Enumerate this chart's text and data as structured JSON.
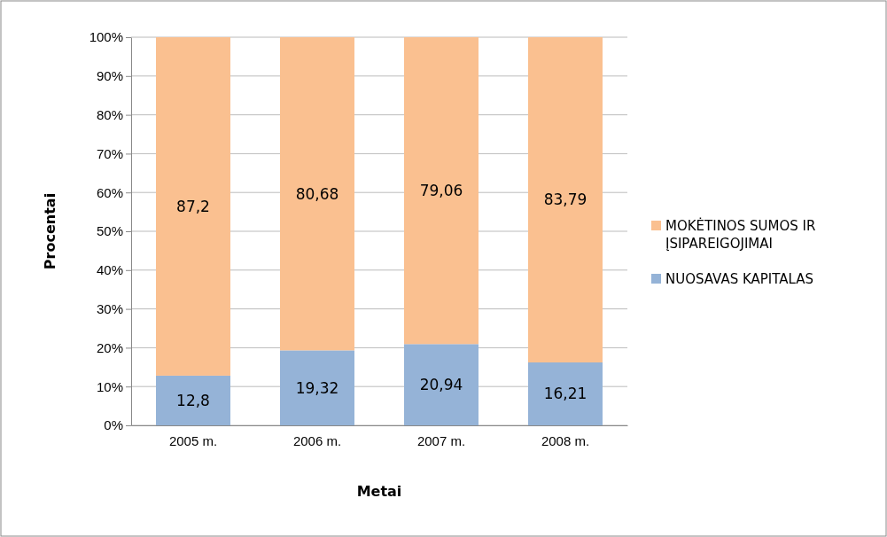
{
  "chart_data": {
    "type": "bar",
    "stacked": true,
    "xlabel": "Metai",
    "ylabel": "Procentai",
    "categories": [
      "2005 m.",
      "2006 m.",
      "2007 m.",
      "2008 m."
    ],
    "series": [
      {
        "name": "NUOSAVAS KAPITALAS",
        "color": "#95b3d7",
        "values": [
          12.8,
          19.32,
          20.94,
          16.21
        ],
        "value_labels": [
          "12,8",
          "19,32",
          "20,94",
          "16,21"
        ]
      },
      {
        "name": "MOKĖTINOS SUMOS IR ĮSIPAREIGOJIMAI",
        "color": "#fac090",
        "values": [
          87.2,
          80.68,
          79.06,
          83.79
        ],
        "value_labels": [
          "87,2",
          "80,68",
          "79,06",
          "83,79"
        ]
      }
    ],
    "ylim": [
      0,
      100
    ],
    "yticks": [
      {
        "value": 0,
        "label": "0%"
      },
      {
        "value": 10,
        "label": "10%"
      },
      {
        "value": 20,
        "label": "20%"
      },
      {
        "value": 30,
        "label": "30%"
      },
      {
        "value": 40,
        "label": "40%"
      },
      {
        "value": 50,
        "label": "50%"
      },
      {
        "value": 60,
        "label": "60%"
      },
      {
        "value": 70,
        "label": "70%"
      },
      {
        "value": 80,
        "label": "80%"
      },
      {
        "value": 90,
        "label": "90%"
      },
      {
        "value": 100,
        "label": "100%"
      }
    ],
    "grid": "y",
    "legend": "right"
  }
}
